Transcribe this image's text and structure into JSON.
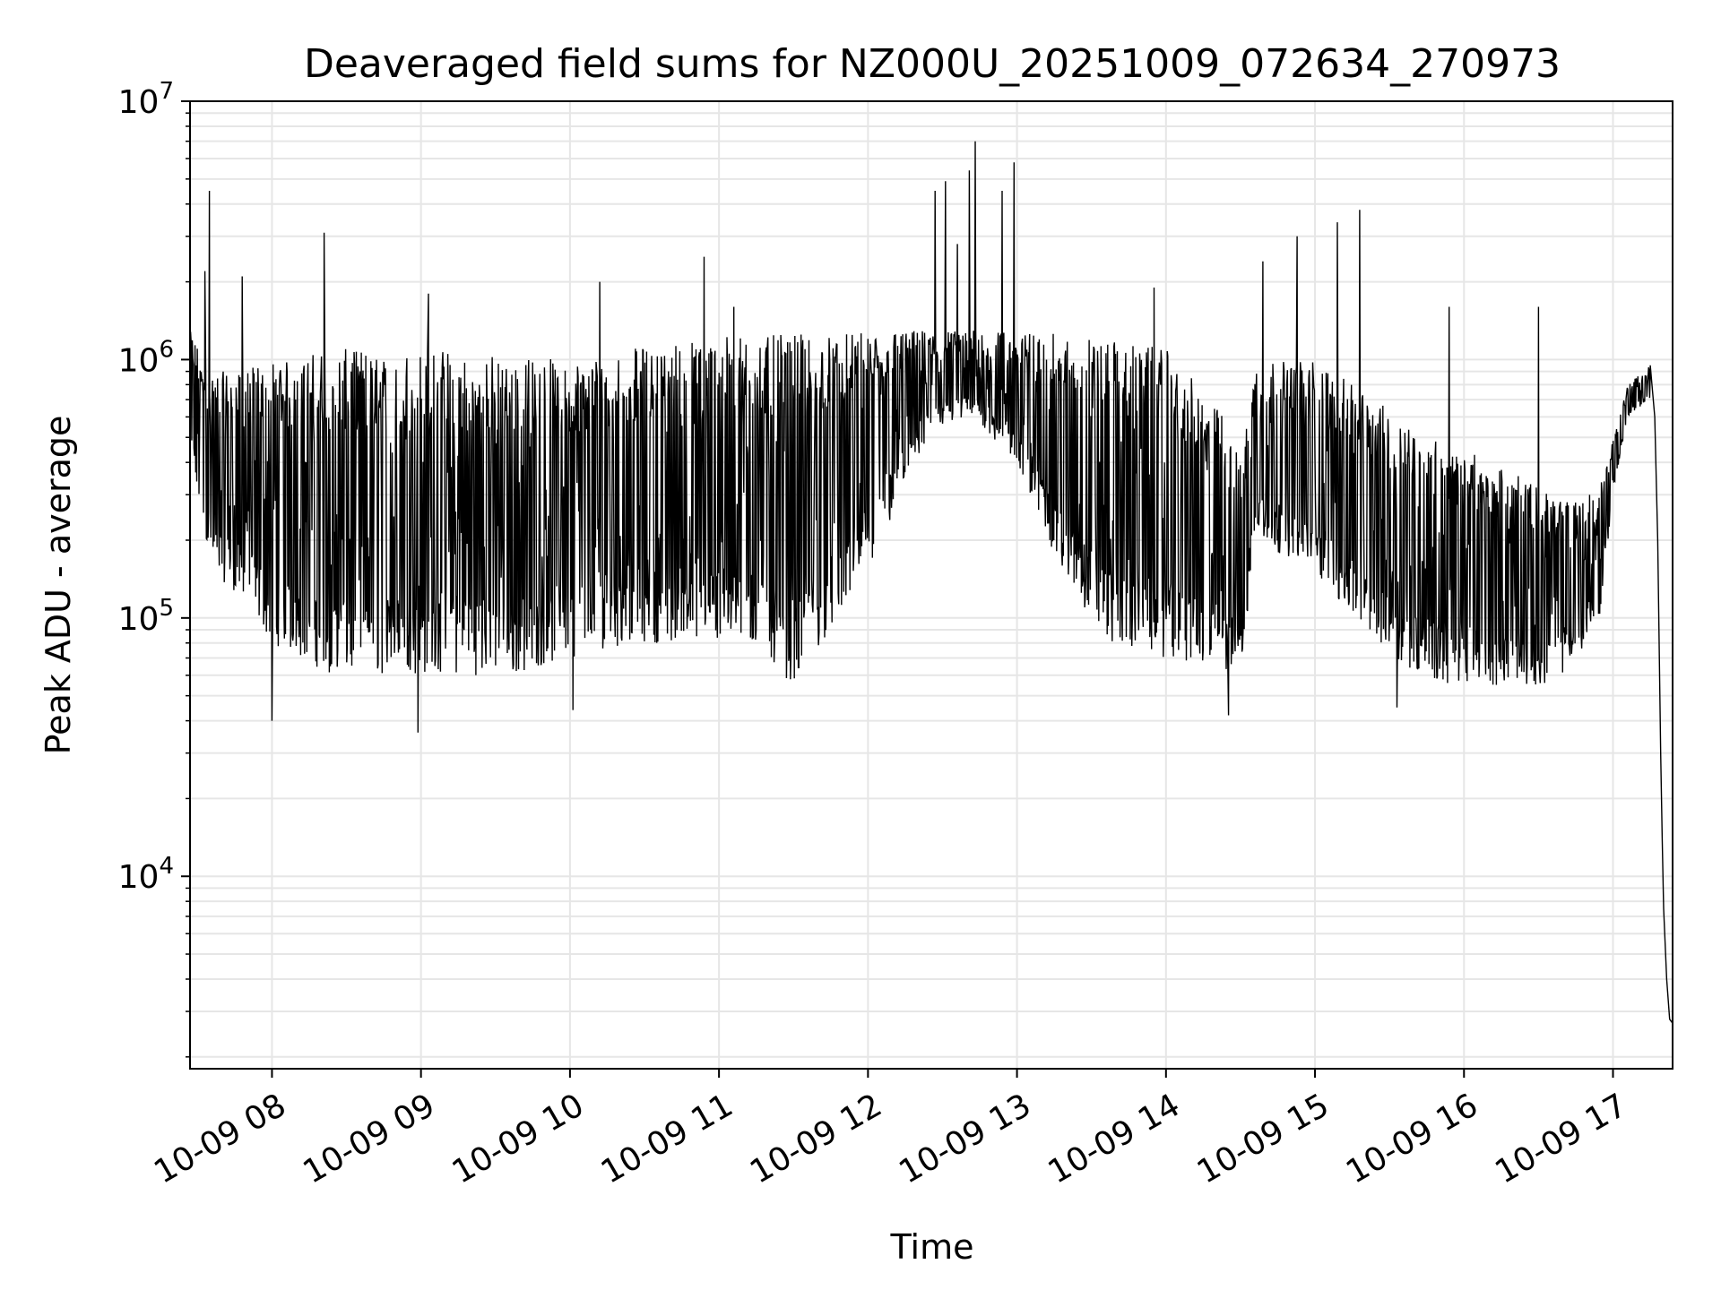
{
  "chart_data": {
    "type": "line",
    "title": "Deaveraged field sums for NZ000U_20251009_072634_270973",
    "xlabel": "Time",
    "ylabel": "Peak ADU - average",
    "yscale": "log",
    "ylim": [
      1800,
      10000000
    ],
    "xlim_hours": [
      7.45,
      17.4
    ],
    "grid": true,
    "x_tick_labels": [
      "10-09 08",
      "10-09 09",
      "10-09 10",
      "10-09 11",
      "10-09 12",
      "10-09 13",
      "10-09 14",
      "10-09 15",
      "10-09 16",
      "10-09 17"
    ],
    "x_tick_hours": [
      8,
      9,
      10,
      11,
      12,
      13,
      14,
      15,
      16,
      17
    ],
    "y_tick_labels": [
      {
        "base": "10",
        "exp": "4",
        "value": 10000
      },
      {
        "base": "10",
        "exp": "5",
        "value": 100000
      },
      {
        "base": "10",
        "exp": "6",
        "value": 1000000
      },
      {
        "base": "10",
        "exp": "7",
        "value": 10000000
      }
    ],
    "series": [
      {
        "name": "Peak ADU - average",
        "color": "#000000",
        "envelope": [
          {
            "t": 7.45,
            "lo": 400000,
            "hi": 1300000
          },
          {
            "t": 7.6,
            "lo": 150000,
            "hi": 900000
          },
          {
            "t": 7.8,
            "lo": 120000,
            "hi": 900000
          },
          {
            "t": 8.0,
            "lo": 80000,
            "hi": 1000000
          },
          {
            "t": 8.4,
            "lo": 60000,
            "hi": 1100000
          },
          {
            "t": 8.8,
            "lo": 60000,
            "hi": 1100000
          },
          {
            "t": 9.2,
            "lo": 60000,
            "hi": 1100000
          },
          {
            "t": 9.6,
            "lo": 60000,
            "hi": 1050000
          },
          {
            "t": 10.0,
            "lo": 70000,
            "hi": 1000000
          },
          {
            "t": 10.4,
            "lo": 80000,
            "hi": 1100000
          },
          {
            "t": 10.8,
            "lo": 80000,
            "hi": 1200000
          },
          {
            "t": 11.2,
            "lo": 80000,
            "hi": 1250000
          },
          {
            "t": 11.5,
            "lo": 55000,
            "hi": 1250000
          },
          {
            "t": 11.8,
            "lo": 100000,
            "hi": 1250000
          },
          {
            "t": 12.1,
            "lo": 200000,
            "hi": 1300000
          },
          {
            "t": 12.4,
            "lo": 500000,
            "hi": 1300000
          },
          {
            "t": 12.7,
            "lo": 600000,
            "hi": 1300000
          },
          {
            "t": 13.0,
            "lo": 400000,
            "hi": 1300000
          },
          {
            "t": 13.3,
            "lo": 150000,
            "hi": 1250000
          },
          {
            "t": 13.6,
            "lo": 80000,
            "hi": 1200000
          },
          {
            "t": 14.0,
            "lo": 70000,
            "hi": 1100000
          },
          {
            "t": 14.4,
            "lo": 60000,
            "hi": 600000
          },
          {
            "t": 14.5,
            "lo": 60000,
            "hi": 400000
          },
          {
            "t": 14.6,
            "lo": 200000,
            "hi": 1000000
          },
          {
            "t": 15.0,
            "lo": 150000,
            "hi": 1000000
          },
          {
            "t": 15.4,
            "lo": 80000,
            "hi": 700000
          },
          {
            "t": 15.8,
            "lo": 55000,
            "hi": 500000
          },
          {
            "t": 16.2,
            "lo": 55000,
            "hi": 400000
          },
          {
            "t": 16.6,
            "lo": 55000,
            "hi": 300000
          },
          {
            "t": 16.9,
            "lo": 90000,
            "hi": 300000
          },
          {
            "t": 17.0,
            "lo": 300000,
            "hi": 500000
          },
          {
            "t": 17.1,
            "lo": 600000,
            "hi": 800000
          },
          {
            "t": 17.25,
            "lo": 700000,
            "hi": 950000
          }
        ],
        "spikes": [
          {
            "t": 7.55,
            "v": 2200000
          },
          {
            "t": 7.58,
            "v": 4500000
          },
          {
            "t": 7.8,
            "v": 2100000
          },
          {
            "t": 8.35,
            "v": 3100000
          },
          {
            "t": 9.05,
            "v": 1800000
          },
          {
            "t": 10.2,
            "v": 2000000
          },
          {
            "t": 10.9,
            "v": 2500000
          },
          {
            "t": 11.1,
            "v": 1600000
          },
          {
            "t": 12.45,
            "v": 4500000
          },
          {
            "t": 12.52,
            "v": 4900000
          },
          {
            "t": 12.6,
            "v": 2800000
          },
          {
            "t": 12.68,
            "v": 5400000
          },
          {
            "t": 12.72,
            "v": 7000000
          },
          {
            "t": 12.9,
            "v": 4500000
          },
          {
            "t": 12.98,
            "v": 5800000
          },
          {
            "t": 13.92,
            "v": 1900000
          },
          {
            "t": 14.65,
            "v": 2400000
          },
          {
            "t": 14.88,
            "v": 3000000
          },
          {
            "t": 15.15,
            "v": 3400000
          },
          {
            "t": 15.3,
            "v": 3800000
          },
          {
            "t": 15.9,
            "v": 1600000
          },
          {
            "t": 16.5,
            "v": 1600000
          }
        ],
        "dips": [
          {
            "t": 8.0,
            "v": 40000
          },
          {
            "t": 8.98,
            "v": 36000
          },
          {
            "t": 10.02,
            "v": 44000
          },
          {
            "t": 14.42,
            "v": 42000
          },
          {
            "t": 15.55,
            "v": 45000
          }
        ],
        "tail": [
          {
            "t": 17.25,
            "v": 950000
          },
          {
            "t": 17.28,
            "v": 600000
          },
          {
            "t": 17.3,
            "v": 200000
          },
          {
            "t": 17.32,
            "v": 30000
          },
          {
            "t": 17.33,
            "v": 14000
          },
          {
            "t": 17.34,
            "v": 7500
          },
          {
            "t": 17.36,
            "v": 4000
          },
          {
            "t": 17.38,
            "v": 2800
          },
          {
            "t": 17.4,
            "v": 2700
          }
        ]
      }
    ]
  }
}
